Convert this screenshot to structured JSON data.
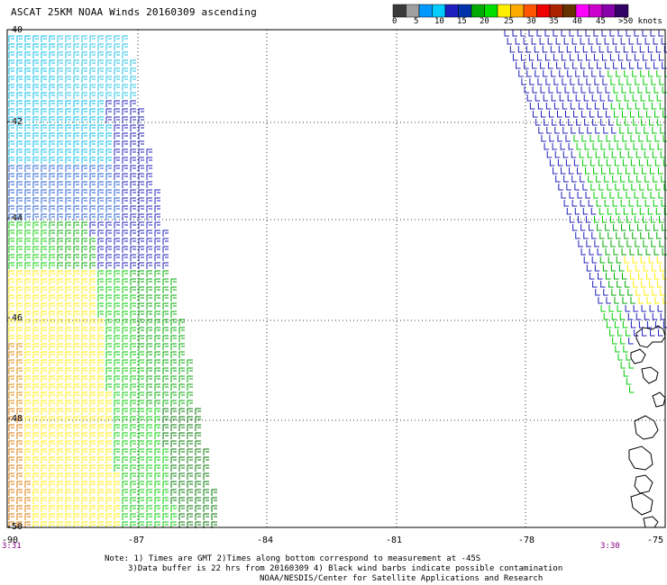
{
  "title": "ASCAT 25KM NOAA Winds 20160309 ascending",
  "color_scale": {
    "colors": [
      "#3a3a3a",
      "#a0a0a0",
      "#0099ff",
      "#00ccff",
      "#1f1fbf",
      "#0033aa",
      "#00aa00",
      "#00dd00",
      "#ffee00",
      "#ffaa00",
      "#ff5500",
      "#ee0000",
      "#aa2200",
      "#663300",
      "#ff00ff",
      "#cc00cc",
      "#8800aa",
      "#330066"
    ],
    "labels": [
      "0",
      "5",
      "10",
      "15",
      "20",
      "25",
      "30",
      "35",
      "40",
      "45",
      ">50 knots"
    ]
  },
  "lat_labels": [
    "-40",
    "-42",
    "-44",
    "-46",
    "-48",
    "-50"
  ],
  "lon_labels": [
    "-90",
    "-87",
    "-84",
    "-81",
    "-78",
    "-75"
  ],
  "time_left": "3:31",
  "time_right": "3:30",
  "notes": [
    "Note: 1) Times are GMT 2)Times along bottom correspond to measurement at -45S",
    "3)Data buffer is 22 hrs from 20160309 4) Black wind barbs indicate possible contamination",
    "NOAA/NESDIS/Center for Satellite Applications and Research"
  ]
}
